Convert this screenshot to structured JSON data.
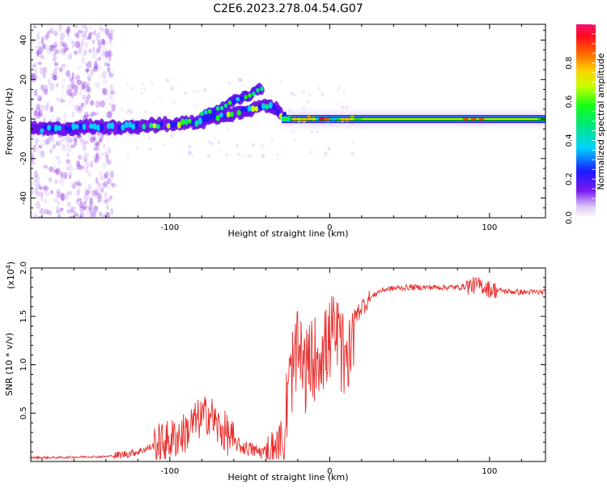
{
  "title": "C2E6.2023.278.04.54.G07",
  "chart_data": [
    {
      "type": "heatmap",
      "xlabel": "Height of straight line (km)",
      "ylabel": "Frequency (Hz)",
      "xlim": [
        -187,
        135
      ],
      "ylim": [
        -50,
        48
      ],
      "xticks": [
        -100,
        0,
        100
      ],
      "yticks": [
        -40,
        -20,
        0,
        20,
        40
      ],
      "colorbar": {
        "label": "Normalized spectral amplitude",
        "range": [
          0,
          1
        ],
        "ticks": [
          "0.0",
          "0.2",
          "0.4",
          "0.6",
          "0.8"
        ],
        "tick_values": [
          0.0,
          0.2,
          0.4,
          0.6,
          0.8
        ]
      },
      "trace": {
        "x": [
          -187,
          -170,
          -150,
          -130,
          -110,
          -100,
          -90,
          -80,
          -70,
          -60,
          -50,
          -42,
          -35,
          -30,
          -20,
          -10,
          0,
          10,
          30,
          60,
          100,
          135
        ],
        "freq": [
          -5,
          -5,
          -4,
          -4,
          -3,
          -3,
          -2,
          -1,
          1,
          3,
          5,
          7,
          6,
          2,
          0,
          0,
          0,
          0,
          0,
          0,
          0,
          0
        ]
      },
      "upper_branch": {
        "x": [
          -80,
          -70,
          -60,
          -50,
          -42
        ],
        "freq": [
          2,
          5,
          9,
          12,
          16
        ]
      },
      "grid": false
    },
    {
      "type": "line",
      "xlabel": "Height of straight line (km)",
      "ylabel": "SNR (10 * v/v)",
      "yscale_label": "(x10",
      "yscale_exp": "4",
      "xlim": [
        -187,
        135
      ],
      "ylim": [
        0,
        2.0
      ],
      "xticks": [
        -100,
        0,
        100
      ],
      "yticks": [
        "0.5",
        "1.0",
        "1.5",
        "2.0"
      ],
      "ytick_values": [
        0.5,
        1.0,
        1.5,
        2.0
      ],
      "color": "#e8302e",
      "series": [
        {
          "x": [
            -187,
            -170,
            -150,
            -140,
            -130,
            -120,
            -110,
            -100,
            -90,
            -85,
            -80,
            -75,
            -70,
            -65,
            -60,
            -55,
            -50,
            -45,
            -40,
            -35,
            -30,
            -28,
            -26,
            -24,
            -22,
            -20,
            -18,
            -16,
            -14,
            -12,
            -10,
            -8,
            -6,
            -4,
            -2,
            0,
            2,
            4,
            6,
            8,
            10,
            12,
            14,
            16,
            18,
            20,
            25,
            30,
            35,
            40,
            50,
            60,
            70,
            80,
            90,
            95,
            100,
            110,
            120,
            135
          ],
          "y": [
            0.04,
            0.04,
            0.05,
            0.05,
            0.07,
            0.1,
            0.16,
            0.22,
            0.3,
            0.4,
            0.45,
            0.5,
            0.35,
            0.3,
            0.2,
            0.15,
            0.13,
            0.1,
            0.1,
            0.15,
            0.3,
            0.5,
            0.75,
            1.0,
            1.1,
            1.2,
            1.15,
            1.0,
            1.05,
            1.1,
            1.15,
            1.2,
            1.25,
            1.25,
            1.25,
            1.35,
            1.4,
            1.4,
            1.3,
            1.2,
            1.0,
            1.3,
            1.4,
            1.5,
            1.55,
            1.6,
            1.68,
            1.75,
            1.78,
            1.79,
            1.8,
            1.8,
            1.8,
            1.8,
            1.82,
            1.82,
            1.78,
            1.76,
            1.75,
            1.75
          ]
        }
      ],
      "grid": false
    }
  ]
}
